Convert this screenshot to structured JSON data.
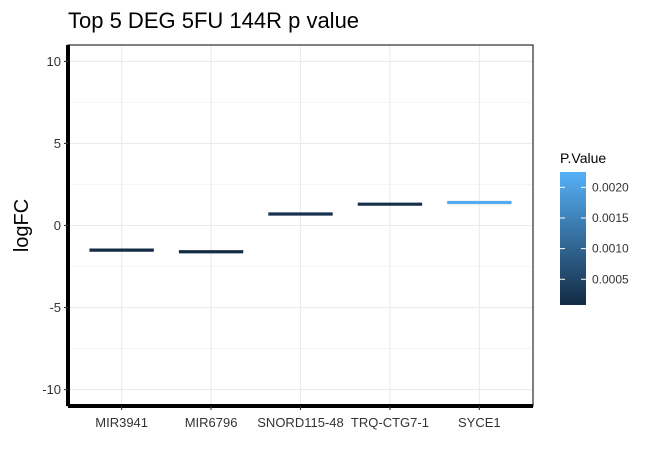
{
  "chart_data": {
    "type": "errorbar",
    "title": "Top 5 DEG 5FU 144R p value",
    "xlabel": "",
    "ylabel": "logFC",
    "ylim": [
      -11,
      11
    ],
    "yticks": [
      -10,
      -5,
      0,
      5,
      10
    ],
    "yticklabels": [
      "-10",
      "-5",
      "0",
      "5",
      "10"
    ],
    "grid": true,
    "categories": [
      "MIR3941",
      "MIR6796",
      "SNORD115-48",
      "TRQ-CTG7-1",
      "SYCE1"
    ],
    "values": [
      -1.5,
      -1.6,
      0.7,
      1.3,
      1.4
    ],
    "p_values": [
      0.00012,
      0.0001,
      0.0002,
      0.00015,
      0.00215
    ],
    "legend": {
      "title": "P.Value",
      "position": "right",
      "range": [
        8e-05,
        0.00225
      ],
      "ticks": [
        0.0005,
        0.001,
        0.0015,
        0.002
      ],
      "ticklabels": [
        "0.0005",
        "0.0010",
        "0.0015",
        "0.0020"
      ],
      "color_low": "#132B43",
      "color_high": "#56B1F7"
    }
  }
}
